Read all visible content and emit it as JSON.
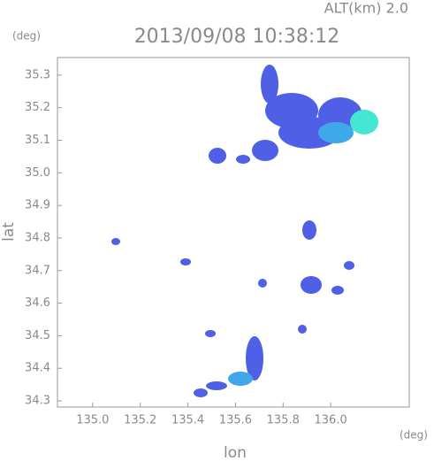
{
  "chart_data": {
    "type": "radar",
    "title": "2013/09/08 10:38:12",
    "annotation": "ALT(km) 2.0",
    "x_label": "lon",
    "y_label": "lat",
    "x_unit": "(deg)",
    "y_unit": "(deg)",
    "xlim": [
      134.852,
      136.33
    ],
    "ylim": [
      34.281,
      35.354
    ],
    "xticks": [
      {
        "value": 135,
        "label": "135.0"
      },
      135.2,
      135.4,
      135.6,
      135.8,
      {
        "value": 136,
        "label": "136.0"
      }
    ],
    "yticks": [
      34.3,
      34.4,
      34.5,
      34.6,
      34.7,
      34.8,
      34.9,
      {
        "value": 35,
        "label": "35.0"
      },
      35.1,
      35.2,
      35.3
    ]
  }
}
